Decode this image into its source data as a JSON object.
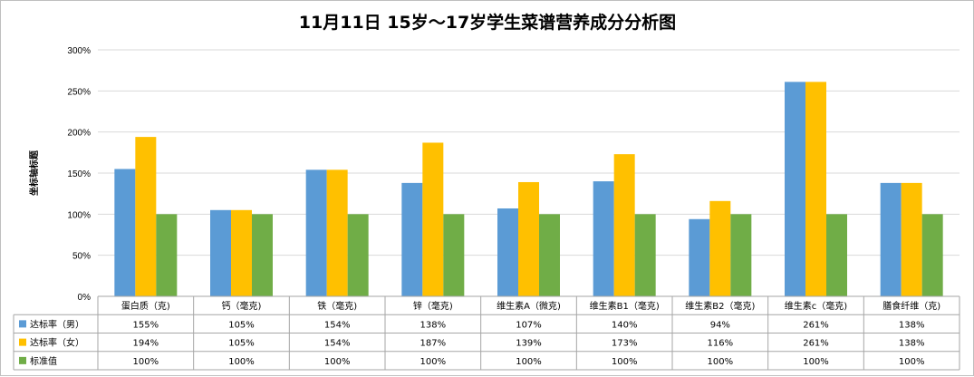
{
  "chart_data": {
    "type": "bar",
    "title": "11月11日  15岁～17岁学生菜谱营养成分分析图",
    "xlabel": "",
    "ylabel": "坐标轴标题",
    "ylim": [
      0,
      300
    ],
    "yticks": [
      "0%",
      "50%",
      "100%",
      "150%",
      "200%",
      "250%",
      "300%"
    ],
    "grid": true,
    "legend": "data-table",
    "categories": [
      "蛋白质（克)",
      "钙（毫克)",
      "铁（毫克)",
      "锌（毫克)",
      "维生素A（微克)",
      "维生素B1（毫克)",
      "维生素B2（毫克)",
      "维生素c（毫克)",
      "膳食纤维（克)"
    ],
    "series": [
      {
        "name": "达标率（男）",
        "color": "#5b9bd5",
        "values": [
          155,
          105,
          154,
          138,
          107,
          140,
          94,
          261,
          138
        ],
        "labels": [
          "155%",
          "105%",
          "154%",
          "138%",
          "107%",
          "140%",
          "94%",
          "261%",
          "138%"
        ]
      },
      {
        "name": "达标率（女）",
        "color": "#ffc000",
        "values": [
          194,
          105,
          154,
          187,
          139,
          173,
          116,
          261,
          138
        ],
        "labels": [
          "194%",
          "105%",
          "154%",
          "187%",
          "139%",
          "173%",
          "116%",
          "261%",
          "138%"
        ]
      },
      {
        "name": "标准值",
        "color": "#70ad47",
        "values": [
          100,
          100,
          100,
          100,
          100,
          100,
          100,
          100,
          100
        ],
        "labels": [
          "100%",
          "100%",
          "100%",
          "100%",
          "100%",
          "100%",
          "100%",
          "100%",
          "100%"
        ]
      }
    ]
  }
}
